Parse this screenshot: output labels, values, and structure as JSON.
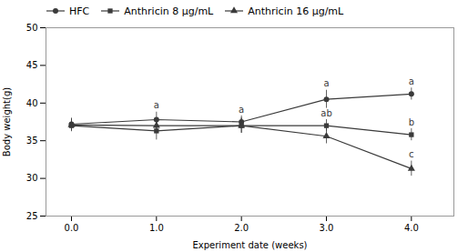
{
  "chart_data": {
    "type": "line",
    "x": [
      0,
      1,
      2,
      3,
      4
    ],
    "xlabel": "Experiment date (weeks)",
    "ylabel": "Body weight(g)",
    "xlim": [
      -0.3,
      4.5
    ],
    "xticks": [
      0,
      1,
      2,
      3,
      4
    ],
    "ylim": [
      25,
      50
    ],
    "yticks": [
      25,
      30,
      35,
      40,
      45,
      50
    ],
    "legend": "upper left",
    "series": [
      {
        "name": "HFC",
        "color": "#3a3a3a",
        "marker": "circle",
        "line_style": "solid",
        "values": [
          37.2,
          37.8,
          37.5,
          40.5,
          41.2
        ],
        "errors": [
          0.8,
          1.0,
          0.8,
          1.2,
          0.8
        ]
      },
      {
        "name": "Anthricin 8 μg/mL",
        "color": "#3a3a3a",
        "marker": "square",
        "line_style": "solid",
        "values": [
          37.0,
          36.3,
          37.0,
          37.0,
          35.8
        ],
        "errors": [
          0.8,
          1.2,
          1.0,
          0.8,
          0.8
        ]
      },
      {
        "name": "Anthricin 16 μg/mL",
        "color": "#3a3a3a",
        "marker": "triangle",
        "line_style": "solid",
        "values": [
          37.1,
          37.0,
          37.0,
          35.6,
          31.3
        ],
        "errors": [
          0.8,
          0.8,
          1.0,
          1.0,
          1.0
        ]
      }
    ],
    "annotations": [
      {
        "text": "a",
        "x": 1,
        "series": "HFC"
      },
      {
        "text": "a",
        "x": 2,
        "series": "HFC"
      },
      {
        "text": "a",
        "x": 3,
        "series": "HFC"
      },
      {
        "text": "ab",
        "x": 3,
        "series": "Anthricin 8 μg/mL"
      },
      {
        "text": "a",
        "x": 4,
        "series": "HFC"
      },
      {
        "text": "b",
        "x": 4,
        "series": "Anthricin 8 μg/mL"
      },
      {
        "text": "c",
        "x": 4,
        "series": "Anthricin 16 μg/mL"
      }
    ]
  }
}
